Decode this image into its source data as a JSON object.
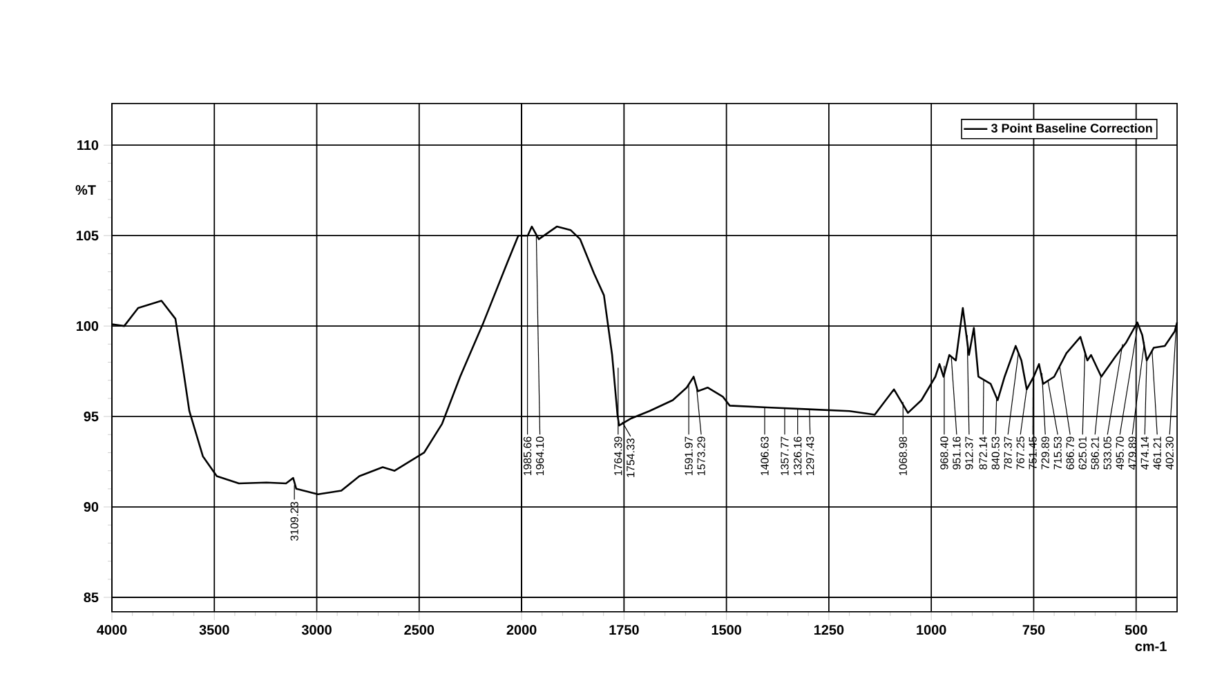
{
  "chart_data": [
    {
      "type": "line",
      "ylabel": "%T",
      "xlim": [
        4000,
        2000
      ],
      "ylim": [
        84.2,
        112.3
      ],
      "xticks": [
        4000,
        3500,
        3000,
        2500
      ],
      "yticks": [
        85,
        90,
        95,
        100,
        105,
        110
      ],
      "grid": true,
      "marker": "none",
      "line_style": "solid",
      "series": [
        {
          "color": "#000000",
          "x": [
            4000,
            3940,
            3872,
            3758,
            3690,
            3656,
            3622,
            3556,
            3488,
            3380,
            3245,
            3150,
            3115,
            3100,
            2994,
            2880,
            2792,
            2678,
            2620,
            2476,
            2388,
            2300,
            2186,
            2070,
            2016,
            2000
          ],
          "values": [
            100.1,
            100.0,
            101.0,
            101.4,
            100.4,
            97.9,
            95.3,
            92.8,
            91.7,
            91.3,
            91.35,
            91.3,
            91.6,
            91.0,
            90.7,
            90.9,
            91.7,
            92.2,
            92.0,
            93.0,
            94.6,
            97.2,
            100.2,
            103.5,
            105.0,
            105.0
          ]
        }
      ],
      "annotations": [
        {
          "text": "3109.23",
          "x": 3109.23,
          "y": 91.2
        }
      ]
    },
    {
      "type": "line",
      "xlabel": "cm-1",
      "xlim": [
        2000,
        400
      ],
      "ylim": [
        84.2,
        112.3
      ],
      "xticks": [
        2000,
        1750,
        1500,
        1250,
        1000,
        750,
        500
      ],
      "yticks": [
        85,
        90,
        95,
        100,
        105,
        110
      ],
      "tick_labels": "x",
      "grid": true,
      "legend": "top right",
      "marker": "none",
      "line_style": "solid",
      "series": [
        {
          "name": "3 Point Baseline Correction",
          "color": "#000000",
          "x": [
            2000,
            1985,
            1975,
            1958,
            1914,
            1880,
            1857,
            1823,
            1799,
            1779,
            1766,
            1762,
            1732,
            1688,
            1631,
            1597,
            1580,
            1570,
            1546,
            1509,
            1492,
            1400,
            1300,
            1200,
            1138,
            1091,
            1057,
            1024,
            990,
            980,
            970,
            956,
            940,
            923,
            908,
            896,
            885,
            855,
            838,
            821,
            794,
            780,
            767,
            750,
            737,
            727,
            700,
            670,
            636,
            619,
            610,
            585,
            551,
            524,
            497,
            485,
            474,
            457,
            430,
            406,
            400
          ],
          "values": [
            105.0,
            105.0,
            105.5,
            104.8,
            105.5,
            105.3,
            104.8,
            102.9,
            101.7,
            98.4,
            95.1,
            94.5,
            94.9,
            95.3,
            95.9,
            96.6,
            97.2,
            96.4,
            96.6,
            96.1,
            95.6,
            95.5,
            95.4,
            95.3,
            95.1,
            96.5,
            95.2,
            95.9,
            97.2,
            97.9,
            97.2,
            98.4,
            98.1,
            101.0,
            98.4,
            99.9,
            97.2,
            96.8,
            95.9,
            97.2,
            98.9,
            98.1,
            96.5,
            97.2,
            97.9,
            96.8,
            97.2,
            98.5,
            99.4,
            98.1,
            98.4,
            97.2,
            98.3,
            99.1,
            100.2,
            99.5,
            98.1,
            98.8,
            98.9,
            99.7,
            100.2
          ]
        }
      ],
      "annotations": [
        {
          "text": "1985.66",
          "x": 1985.66,
          "y": 105.0
        },
        {
          "text": "1964.10",
          "x": 1964.1,
          "y": 105.0
        },
        {
          "text": "1764.39",
          "x": 1764.39,
          "y": 97.7
        },
        {
          "text": "1754.33",
          "x": 1754.33,
          "y": 94.7
        },
        {
          "text": "1591.97",
          "x": 1591.97,
          "y": 96.8
        },
        {
          "text": "1573.29",
          "x": 1573.29,
          "y": 96.7
        },
        {
          "text": "1406.63",
          "x": 1406.63,
          "y": 95.5
        },
        {
          "text": "1357.77",
          "x": 1357.77,
          "y": 95.45
        },
        {
          "text": "1326.16",
          "x": 1326.16,
          "y": 95.43
        },
        {
          "text": "1297.43",
          "x": 1297.43,
          "y": 95.4
        },
        {
          "text": "1068.98",
          "x": 1068.98,
          "y": 95.8
        },
        {
          "text": "968.40",
          "x": 968.4,
          "y": 97.8
        },
        {
          "text": "951.16",
          "x": 951.16,
          "y": 98.3
        },
        {
          "text": "912.37",
          "x": 912.37,
          "y": 99.5
        },
        {
          "text": "872.14",
          "x": 872.14,
          "y": 97.0
        },
        {
          "text": "840.53",
          "x": 840.53,
          "y": 96.1
        },
        {
          "text": "787.37",
          "x": 787.37,
          "y": 98.5
        },
        {
          "text": "767.25",
          "x": 767.25,
          "y": 96.5
        },
        {
          "text": "751.45",
          "x": 751.45,
          "y": 97.1
        },
        {
          "text": "729.89",
          "x": 729.89,
          "y": 97.4
        },
        {
          "text": "715.53",
          "x": 715.53,
          "y": 97.0
        },
        {
          "text": "686.79",
          "x": 686.79,
          "y": 97.8
        },
        {
          "text": "625.01",
          "x": 625.01,
          "y": 98.6
        },
        {
          "text": "586.21",
          "x": 586.21,
          "y": 97.2
        },
        {
          "text": "533.05",
          "x": 533.05,
          "y": 99.0
        },
        {
          "text": "495.70",
          "x": 495.7,
          "y": 100.1
        },
        {
          "text": "479.89",
          "x": 479.89,
          "y": 99.1
        },
        {
          "text": "474.14",
          "x": 474.14,
          "y": 98.1
        },
        {
          "text": "461.21",
          "x": 461.21,
          "y": 98.7
        },
        {
          "text": "402.30",
          "x": 402.3,
          "y": 99.9
        }
      ]
    }
  ]
}
